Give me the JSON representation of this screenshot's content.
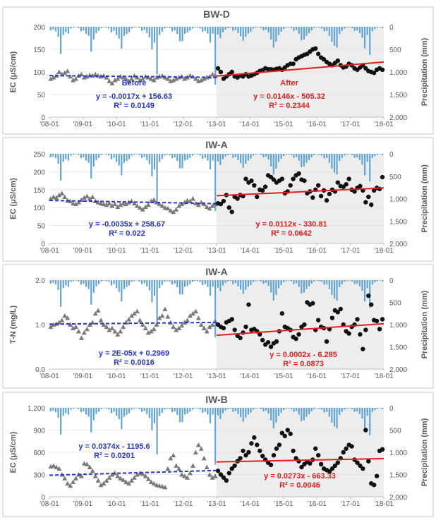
{
  "figure": {
    "x_ticks": [
      "'08-01",
      "'09-01",
      "'10-01",
      "'11-01",
      "'12-01",
      "'13-01",
      "'14-01",
      "'15-01",
      "'16-01",
      "'17-01",
      "'18-01"
    ],
    "precip_label": "Precipitation (mm)",
    "precip_ticks": [
      "0",
      "500",
      "1,000",
      "1,500",
      "2,000"
    ],
    "colors": {
      "before_trend": "#2a36c8",
      "after_trend": "#e02020",
      "precip": "#5ea2d6",
      "after_bg": "#ededed",
      "before_marker": "#7a7a7a",
      "after_marker": "#111111"
    }
  },
  "chart_data": [
    {
      "type": "scatter",
      "title": "BW-D",
      "ylabel": "EC (μS/cm)",
      "ylim": [
        0,
        200
      ],
      "y_ticks": [
        "0",
        "50",
        "100",
        "150",
        "200"
      ],
      "before": {
        "label": "Before",
        "equation": "y = -0.0017x + 156.63",
        "r2": "R² = 0.0149",
        "trend": [
          92,
          88
        ],
        "values": [
          85,
          88,
          92,
          100,
          95,
          98,
          102,
          90,
          82,
          85,
          92,
          95,
          88,
          90,
          93,
          92,
          95,
          92,
          90,
          92,
          88,
          80,
          75,
          82,
          85,
          90,
          88,
          85,
          80,
          85,
          92,
          88,
          82,
          85,
          90,
          88,
          85,
          82,
          88,
          90,
          92,
          88,
          85,
          80,
          82,
          85,
          88,
          90,
          85,
          88,
          92,
          90,
          85,
          80,
          82,
          85,
          88,
          90,
          95,
          92
        ]
      },
      "after": {
        "label": "After",
        "equation": "y = 0.0146x - 505.32",
        "r2": "R² = 0.2344",
        "trend": [
          91,
          122
        ],
        "values": [
          108,
          100,
          85,
          90,
          95,
          100,
          90,
          88,
          92,
          90,
          95,
          90,
          92,
          95,
          98,
          102,
          104,
          108,
          106,
          106,
          105,
          107,
          108,
          105,
          110,
          115,
          118,
          118,
          128,
          132,
          135,
          138,
          140,
          145,
          150,
          152,
          140,
          132,
          128,
          122,
          118,
          115,
          120,
          125,
          115,
          110,
          112,
          118,
          115,
          108,
          105,
          110,
          115,
          108,
          102,
          100,
          98,
          105,
          108,
          105
        ]
      },
      "precip_mm": [
        80,
        60,
        100,
        220,
        600,
        180,
        120,
        150,
        40,
        20,
        10,
        30,
        100,
        80,
        150,
        200,
        550,
        280,
        140,
        90,
        30,
        10,
        20,
        40,
        120,
        90,
        180,
        260,
        480,
        200,
        160,
        120,
        40,
        20,
        10,
        30,
        90,
        70,
        140,
        230,
        500,
        350,
        1050,
        180,
        110,
        40,
        20,
        30,
        100,
        80,
        160,
        320,
        320,
        150,
        130,
        90,
        40,
        15,
        20,
        40,
        110,
        90,
        150,
        350,
        150,
        1280,
        170,
        250,
        120,
        60,
        30,
        20,
        90,
        70,
        140,
        210,
        310,
        220,
        150,
        110,
        40,
        20,
        10,
        30,
        80,
        60,
        130,
        280,
        460,
        330,
        180,
        110,
        50,
        20,
        10,
        30,
        90,
        70,
        150,
        300,
        280,
        200,
        140,
        80,
        30,
        10,
        20,
        40,
        100,
        90,
        200,
        330,
        420,
        460,
        160,
        90,
        40,
        20,
        10,
        30,
        90,
        80,
        140,
        240,
        480,
        180,
        620,
        100,
        50,
        20,
        10,
        30
      ]
    },
    {
      "type": "scatter",
      "title": "IW-A",
      "ylabel": "EC (μS/cm)",
      "ylim": [
        0,
        250
      ],
      "y_ticks": [
        "0",
        "50",
        "100",
        "150",
        "200",
        "250"
      ],
      "before": {
        "label": "",
        "equation": "y = -0.0035x + 258.67",
        "r2": "R² = 0.022",
        "trend": [
          120,
          111
        ],
        "values": [
          125,
          130,
          128,
          135,
          140,
          130,
          120,
          118,
          112,
          110,
          115,
          122,
          128,
          132,
          125,
          130,
          118,
          115,
          112,
          110,
          108,
          112,
          105,
          110,
          102,
          108,
          112,
          110,
          115,
          118,
          112,
          105,
          100,
          95,
          102,
          108,
          118,
          122,
          115,
          110,
          105,
          100,
          98,
          92,
          88,
          95,
          105,
          110,
          115,
          120,
          118,
          125,
          112,
          108,
          115,
          110,
          102,
          98,
          105,
          110
        ]
      },
      "after": {
        "label": "",
        "equation": "y = 0.0112x - 330.81",
        "r2": "R² = 0.0642",
        "trend": [
          133,
          155
        ],
        "values": [
          112,
          110,
          118,
          135,
          100,
          88,
          130,
          125,
          135,
          132,
          180,
          170,
          175,
          162,
          130,
          150,
          148,
          158,
          190,
          185,
          178,
          170,
          175,
          180,
          140,
          145,
          162,
          180,
          190,
          195,
          178,
          175,
          140,
          145,
          128,
          150,
          162,
          132,
          148,
          120,
          138,
          150,
          145,
          170,
          160,
          158,
          165,
          180,
          150,
          145,
          155,
          160,
          148,
          115,
          130,
          108,
          148,
          155,
          152,
          185
        ]
      },
      "precip_mm": [
        80,
        60,
        100,
        220,
        600,
        180,
        120,
        150,
        40,
        20,
        10,
        30,
        100,
        80,
        150,
        200,
        550,
        280,
        140,
        90,
        30,
        10,
        20,
        40,
        120,
        90,
        180,
        260,
        480,
        200,
        160,
        120,
        40,
        20,
        10,
        30,
        90,
        70,
        140,
        230,
        500,
        350,
        1050,
        180,
        110,
        40,
        20,
        30,
        100,
        80,
        160,
        320,
        320,
        150,
        130,
        90,
        40,
        15,
        20,
        40,
        110,
        90,
        150,
        350,
        150,
        1280,
        170,
        250,
        120,
        60,
        30,
        20,
        90,
        70,
        140,
        210,
        310,
        220,
        150,
        110,
        40,
        20,
        10,
        30,
        80,
        60,
        130,
        280,
        460,
        330,
        180,
        110,
        50,
        20,
        10,
        30,
        90,
        70,
        150,
        300,
        280,
        200,
        140,
        80,
        30,
        10,
        20,
        40,
        100,
        90,
        200,
        330,
        420,
        460,
        160,
        90,
        40,
        20,
        10,
        30,
        90,
        80,
        140,
        240,
        480,
        180,
        620,
        100,
        50,
        20,
        10,
        30
      ]
    },
    {
      "type": "scatter",
      "title": "IW-A",
      "ylabel": "T-N (mg/L)",
      "ylim": [
        0,
        2
      ],
      "y_ticks": [
        "0.0",
        "1.0",
        "2.0"
      ],
      "before": {
        "label": "",
        "equation": "y = 2E-05x + 0.2969",
        "r2": "R² = 0.0016",
        "trend": [
          1.01,
          1.05
        ],
        "values": [
          0.95,
          1.0,
          1.02,
          1.05,
          1.1,
          1.2,
          1.15,
          1.0,
          0.92,
          0.95,
          0.85,
          0.7,
          0.82,
          0.9,
          1.0,
          1.05,
          1.25,
          1.32,
          1.1,
          1.0,
          0.95,
          0.88,
          0.92,
          0.85,
          0.78,
          0.85,
          0.95,
          1.05,
          1.12,
          1.2,
          1.25,
          1.3,
          1.1,
          1.0,
          0.92,
          0.82,
          0.85,
          0.9,
          1.0,
          1.15,
          1.2,
          1.35,
          1.18,
          1.05,
          0.95,
          0.88,
          0.92,
          0.98,
          1.05,
          1.1,
          1.2,
          1.25,
          1.3,
          1.15,
          1.0,
          0.92,
          0.85,
          0.95,
          1.0,
          1.08
        ]
      },
      "after": {
        "label": "",
        "equation": "y = 0.0002x - 6.285",
        "r2": "R² = 0.0873",
        "trend": [
          0.76,
          1.02
        ],
        "values": [
          1.0,
          0.95,
          0.92,
          1.05,
          1.08,
          1.12,
          0.88,
          0.75,
          0.7,
          0.82,
          0.95,
          1.45,
          0.88,
          0.9,
          0.85,
          0.78,
          0.65,
          0.55,
          0.6,
          0.5,
          0.58,
          0.62,
          0.85,
          1.25,
          0.95,
          0.92,
          0.88,
          0.72,
          0.68,
          0.78,
          0.95,
          1.0,
          1.5,
          1.45,
          1.48,
          0.88,
          1.1,
          0.95,
          0.92,
          0.62,
          0.9,
          1.15,
          1.32,
          1.28,
          1.35,
          1.0,
          0.85,
          0.8,
          0.95,
          1.0,
          1.12,
          0.78,
          0.45,
          0.88,
          1.65,
          1.45,
          1.1,
          1.08,
          0.9,
          1.12
        ]
      },
      "precip_mm": [
        80,
        60,
        100,
        220,
        600,
        180,
        120,
        150,
        40,
        20,
        10,
        30,
        100,
        80,
        150,
        200,
        550,
        280,
        140,
        90,
        30,
        10,
        20,
        40,
        120,
        90,
        180,
        260,
        480,
        200,
        160,
        120,
        40,
        20,
        10,
        30,
        90,
        70,
        140,
        230,
        500,
        350,
        1050,
        180,
        110,
        40,
        20,
        30,
        100,
        80,
        160,
        320,
        320,
        150,
        130,
        90,
        40,
        15,
        20,
        40,
        110,
        90,
        150,
        350,
        150,
        1280,
        170,
        250,
        120,
        60,
        30,
        20,
        90,
        70,
        140,
        210,
        310,
        220,
        150,
        110,
        40,
        20,
        10,
        30,
        80,
        60,
        130,
        280,
        460,
        330,
        180,
        110,
        50,
        20,
        10,
        30,
        90,
        70,
        150,
        300,
        280,
        200,
        140,
        80,
        30,
        10,
        20,
        40,
        100,
        90,
        200,
        330,
        420,
        460,
        160,
        90,
        40,
        20,
        10,
        30,
        90,
        80,
        140,
        240,
        480,
        180,
        620,
        100,
        50,
        20,
        10,
        30
      ]
    },
    {
      "type": "scatter",
      "title": "IW-B",
      "ylabel": "EC (μS/cm)",
      "ylim": [
        0,
        1200
      ],
      "y_ticks": [
        "0",
        "300",
        "600",
        "900",
        "1,200"
      ],
      "before": {
        "label": "",
        "equation": "y = 0.0374x - 1195.6",
        "r2": "R² = 0.0201",
        "trend": [
          290,
          355
        ],
        "values": [
          410,
          420,
          400,
          380,
          300,
          250,
          180,
          150,
          200,
          250,
          300,
          280,
          450,
          440,
          400,
          350,
          280,
          220,
          160,
          180,
          220,
          260,
          300,
          320,
          280,
          250,
          230,
          200,
          180,
          220,
          260,
          300,
          320,
          310,
          280,
          240,
          200,
          180,
          160,
          150,
          140,
          130,
          380,
          520,
          560,
          420,
          380,
          300,
          280,
          260,
          320,
          420,
          600,
          700,
          650,
          520,
          400,
          300,
          260,
          280
        ]
      },
      "after": {
        "label": "",
        "equation": "y = 0.0273x - 663.33",
        "r2": "R² = 0.0046",
        "trend": [
          470,
          515
        ],
        "values": [
          350,
          300,
          260,
          220,
          320,
          380,
          420,
          480,
          520,
          620,
          560,
          600,
          720,
          800,
          700,
          620,
          550,
          500,
          460,
          430,
          560,
          650,
          700,
          860,
          820,
          900,
          850,
          620,
          520,
          480,
          400,
          440,
          470,
          450,
          500,
          650,
          560,
          440,
          380,
          360,
          340,
          380,
          420,
          460,
          520,
          600,
          650,
          700,
          680,
          500,
          460,
          420,
          380,
          900,
          480,
          180,
          160,
          280,
          620,
          640
        ]
      },
      "precip_mm": [
        80,
        60,
        100,
        220,
        600,
        180,
        120,
        150,
        40,
        20,
        10,
        30,
        100,
        80,
        150,
        200,
        550,
        280,
        140,
        90,
        30,
        10,
        20,
        40,
        120,
        90,
        180,
        260,
        480,
        200,
        160,
        120,
        40,
        20,
        10,
        30,
        90,
        70,
        140,
        230,
        500,
        350,
        1050,
        180,
        110,
        40,
        20,
        30,
        100,
        80,
        160,
        320,
        320,
        150,
        130,
        90,
        40,
        15,
        20,
        40,
        110,
        90,
        150,
        350,
        150,
        1280,
        170,
        250,
        120,
        60,
        30,
        20,
        90,
        70,
        140,
        210,
        310,
        220,
        150,
        110,
        40,
        20,
        10,
        30,
        80,
        60,
        130,
        280,
        460,
        330,
        180,
        110,
        50,
        20,
        10,
        30,
        90,
        70,
        150,
        300,
        280,
        200,
        140,
        80,
        30,
        10,
        20,
        40,
        100,
        90,
        200,
        330,
        420,
        460,
        160,
        90,
        40,
        20,
        10,
        30,
        90,
        80,
        140,
        240,
        480,
        180,
        620,
        100,
        50,
        20,
        10,
        30
      ]
    }
  ]
}
